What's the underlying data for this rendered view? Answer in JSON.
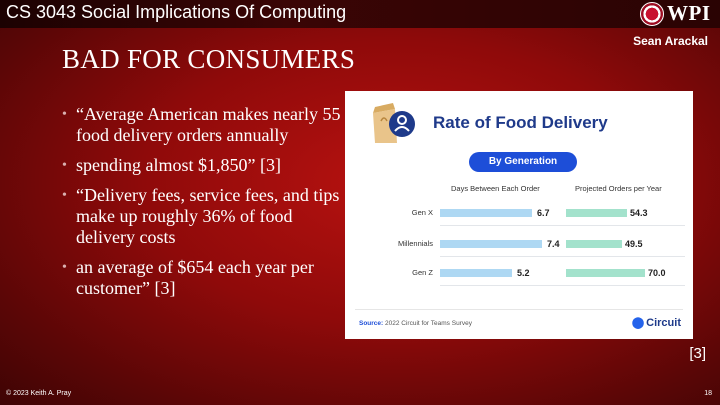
{
  "header": {
    "course_title": "CS 3043 Social Implications Of Computing",
    "logo_text": "WPI",
    "author": "Sean Arackal"
  },
  "slide": {
    "title": "BAD FOR CONSUMERS",
    "bullets": [
      "“Average American makes nearly 55 food delivery orders annually",
      "spending almost $1,850” [3]",
      "“Delivery fees, service fees, and tips make up roughly 36% of food delivery costs",
      "an average of $654 each year per customer” [3]"
    ],
    "citation": "[3]"
  },
  "chart_data": {
    "type": "bar",
    "title": "Rate of Food Delivery",
    "button_label": "By Generation",
    "categories": [
      "Gen X",
      "Millennials",
      "Gen Z"
    ],
    "series": [
      {
        "name": "Days Between Each Order",
        "values": [
          6.7,
          7.4,
          5.2
        ],
        "color": "#aed8f3"
      },
      {
        "name": "Projected Orders per Year",
        "values": [
          54.3,
          49.5,
          70.0
        ],
        "color": "#a3e2cc"
      }
    ],
    "value_labels": {
      "days": [
        "6.7",
        "7.4",
        "5.2"
      ],
      "projected": [
        "54.3",
        "49.5",
        "70.0"
      ]
    },
    "source_label": "Source:",
    "source_text": "2022 Circuit for Teams Survey",
    "brand": "Circuit",
    "accent_color": "#1d4ed8"
  },
  "footer": {
    "copyright": "© 2023 Keith A. Pray",
    "slide_number": "18"
  }
}
